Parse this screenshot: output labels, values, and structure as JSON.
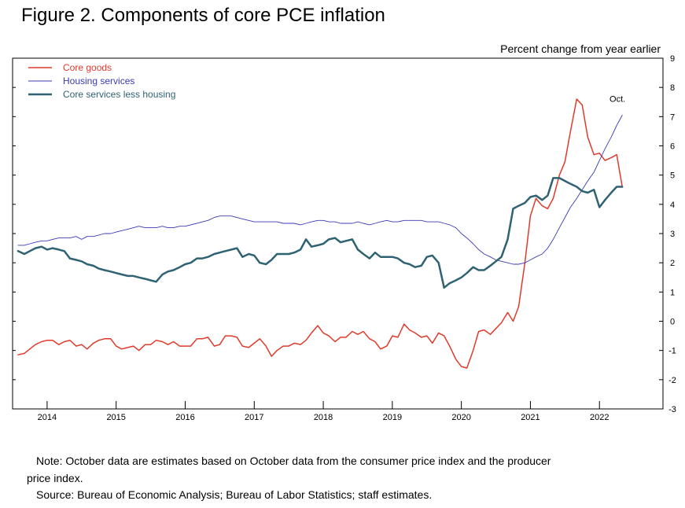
{
  "title": "Figure 2. Components of core PCE inflation",
  "note": "Note: October data are estimates based on October data from the consumer price index and the producer price index.",
  "note_line1": "Note: October data are estimates based on October data from the consumer price index and the producer",
  "note_line2": "price index.",
  "source": "Source: Bureau of Economic Analysis; Bureau of Labor Statistics; staff estimates.",
  "colors": {
    "core_goods": "#e03a2b",
    "housing": "#3a3ab8",
    "core_services": "#2f6272"
  },
  "chart_data": {
    "type": "line",
    "title": "Figure 2. Components of core PCE inflation",
    "ylabel": "Percent change from year earlier",
    "ylim": [
      -3,
      9
    ],
    "yticks": [
      "-3",
      "-2",
      "-1",
      "0",
      "1",
      "2",
      "3",
      "4",
      "5",
      "6",
      "7",
      "8",
      "9"
    ],
    "xlim": [
      2013.5,
      2022.92
    ],
    "xtick_labels": [
      "2014",
      "2015",
      "2016",
      "2017",
      "2018",
      "2019",
      "2020",
      "2021",
      "2022"
    ],
    "annotation": "Oct.",
    "legend": [
      "Core goods",
      "Housing services",
      "Core services less housing"
    ],
    "series": [
      {
        "name": "Core goods",
        "color": "#e03a2b",
        "width": 1.5,
        "x": [
          2013.58,
          2013.67,
          2013.75,
          2013.83,
          2013.92,
          2014.0,
          2014.08,
          2014.17,
          2014.25,
          2014.33,
          2014.42,
          2014.5,
          2014.58,
          2014.67,
          2014.75,
          2014.83,
          2014.92,
          2015.0,
          2015.08,
          2015.17,
          2015.25,
          2015.33,
          2015.42,
          2015.5,
          2015.58,
          2015.67,
          2015.75,
          2015.83,
          2015.92,
          2016.0,
          2016.08,
          2016.17,
          2016.25,
          2016.33,
          2016.42,
          2016.5,
          2016.58,
          2016.67,
          2016.75,
          2016.83,
          2016.92,
          2017.0,
          2017.08,
          2017.17,
          2017.25,
          2017.33,
          2017.42,
          2017.5,
          2017.58,
          2017.67,
          2017.75,
          2017.83,
          2017.92,
          2018.0,
          2018.08,
          2018.17,
          2018.25,
          2018.33,
          2018.42,
          2018.5,
          2018.58,
          2018.67,
          2018.75,
          2018.83,
          2018.92,
          2019.0,
          2019.08,
          2019.17,
          2019.25,
          2019.33,
          2019.42,
          2019.5,
          2019.58,
          2019.67,
          2019.75,
          2019.83,
          2019.92,
          2020.0,
          2020.08,
          2020.17,
          2020.25,
          2020.33,
          2020.42,
          2020.5,
          2020.58,
          2020.67,
          2020.75,
          2020.83,
          2020.92,
          2021.0,
          2021.08,
          2021.17,
          2021.25,
          2021.33,
          2021.42,
          2021.5,
          2021.58,
          2021.67,
          2021.75,
          2021.83,
          2021.92,
          2022.0,
          2022.08,
          2022.17,
          2022.25,
          2022.33
        ],
        "values": [
          -1.15,
          -1.1,
          -0.95,
          -0.8,
          -0.7,
          -0.65,
          -0.65,
          -0.8,
          -0.7,
          -0.65,
          -0.85,
          -0.8,
          -0.95,
          -0.75,
          -0.65,
          -0.6,
          -0.6,
          -0.85,
          -0.95,
          -0.9,
          -0.85,
          -1.0,
          -0.8,
          -0.8,
          -0.65,
          -0.7,
          -0.8,
          -0.7,
          -0.85,
          -0.85,
          -0.85,
          -0.6,
          -0.6,
          -0.55,
          -0.85,
          -0.8,
          -0.5,
          -0.5,
          -0.55,
          -0.85,
          -0.9,
          -0.75,
          -0.6,
          -0.85,
          -1.2,
          -1.0,
          -0.85,
          -0.85,
          -0.75,
          -0.8,
          -0.65,
          -0.4,
          -0.15,
          -0.4,
          -0.5,
          -0.7,
          -0.55,
          -0.55,
          -0.35,
          -0.45,
          -0.35,
          -0.6,
          -0.7,
          -0.95,
          -0.85,
          -0.5,
          -0.55,
          -0.1,
          -0.3,
          -0.4,
          -0.55,
          -0.5,
          -0.75,
          -0.4,
          -0.5,
          -0.85,
          -1.3,
          -1.55,
          -1.6,
          -1.0,
          -0.35,
          -0.3,
          -0.45,
          -0.25,
          -0.05,
          0.3,
          0.0,
          0.5,
          2.0,
          3.6,
          4.2,
          3.95,
          3.85,
          4.2,
          5.0,
          5.45,
          6.5,
          7.6,
          7.4,
          6.3,
          5.7,
          5.75,
          5.5,
          5.6,
          5.7,
          4.6
        ]
      },
      {
        "name": "Housing services",
        "color": "#3a3ab8",
        "width": 0.9,
        "x": [
          2013.58,
          2013.67,
          2013.75,
          2013.83,
          2013.92,
          2014.0,
          2014.08,
          2014.17,
          2014.25,
          2014.33,
          2014.42,
          2014.5,
          2014.58,
          2014.67,
          2014.75,
          2014.83,
          2014.92,
          2015.0,
          2015.08,
          2015.17,
          2015.25,
          2015.33,
          2015.42,
          2015.5,
          2015.58,
          2015.67,
          2015.75,
          2015.83,
          2015.92,
          2016.0,
          2016.08,
          2016.17,
          2016.25,
          2016.33,
          2016.42,
          2016.5,
          2016.58,
          2016.67,
          2016.75,
          2016.83,
          2016.92,
          2017.0,
          2017.08,
          2017.17,
          2017.25,
          2017.33,
          2017.42,
          2017.5,
          2017.58,
          2017.67,
          2017.75,
          2017.83,
          2017.92,
          2018.0,
          2018.08,
          2018.17,
          2018.25,
          2018.33,
          2018.42,
          2018.5,
          2018.58,
          2018.67,
          2018.75,
          2018.83,
          2018.92,
          2019.0,
          2019.08,
          2019.17,
          2019.25,
          2019.33,
          2019.42,
          2019.5,
          2019.58,
          2019.67,
          2019.75,
          2019.83,
          2019.92,
          2020.0,
          2020.08,
          2020.17,
          2020.25,
          2020.33,
          2020.42,
          2020.5,
          2020.58,
          2020.67,
          2020.75,
          2020.83,
          2020.92,
          2021.0,
          2021.08,
          2021.17,
          2021.25,
          2021.33,
          2021.42,
          2021.5,
          2021.58,
          2021.67,
          2021.75,
          2021.83,
          2021.92,
          2022.0,
          2022.08,
          2022.17,
          2022.25,
          2022.33
        ],
        "values": [
          2.6,
          2.6,
          2.65,
          2.7,
          2.75,
          2.75,
          2.8,
          2.85,
          2.85,
          2.85,
          2.9,
          2.8,
          2.9,
          2.9,
          2.95,
          3.0,
          3.0,
          3.05,
          3.1,
          3.15,
          3.2,
          3.25,
          3.2,
          3.2,
          3.2,
          3.25,
          3.2,
          3.2,
          3.25,
          3.25,
          3.3,
          3.35,
          3.4,
          3.45,
          3.55,
          3.6,
          3.6,
          3.6,
          3.55,
          3.5,
          3.45,
          3.4,
          3.4,
          3.4,
          3.4,
          3.4,
          3.35,
          3.35,
          3.35,
          3.3,
          3.35,
          3.4,
          3.45,
          3.45,
          3.4,
          3.4,
          3.35,
          3.35,
          3.35,
          3.4,
          3.35,
          3.3,
          3.35,
          3.4,
          3.45,
          3.4,
          3.4,
          3.45,
          3.45,
          3.45,
          3.45,
          3.4,
          3.4,
          3.4,
          3.35,
          3.3,
          3.2,
          3.0,
          2.85,
          2.65,
          2.45,
          2.3,
          2.2,
          2.1,
          2.05,
          2.0,
          1.95,
          1.95,
          2.0,
          2.1,
          2.2,
          2.3,
          2.5,
          2.8,
          3.2,
          3.55,
          3.9,
          4.2,
          4.5,
          4.8,
          5.1,
          5.5,
          5.9,
          6.3,
          6.7,
          7.05
        ]
      },
      {
        "name": "Core services less housing",
        "color": "#2f6272",
        "width": 2.5,
        "x": [
          2013.58,
          2013.67,
          2013.75,
          2013.83,
          2013.92,
          2014.0,
          2014.08,
          2014.17,
          2014.25,
          2014.33,
          2014.42,
          2014.5,
          2014.58,
          2014.67,
          2014.75,
          2014.83,
          2014.92,
          2015.0,
          2015.08,
          2015.17,
          2015.25,
          2015.33,
          2015.42,
          2015.5,
          2015.58,
          2015.67,
          2015.75,
          2015.83,
          2015.92,
          2016.0,
          2016.08,
          2016.17,
          2016.25,
          2016.33,
          2016.42,
          2016.5,
          2016.58,
          2016.67,
          2016.75,
          2016.83,
          2016.92,
          2017.0,
          2017.08,
          2017.17,
          2017.25,
          2017.33,
          2017.42,
          2017.5,
          2017.58,
          2017.67,
          2017.75,
          2017.83,
          2017.92,
          2018.0,
          2018.08,
          2018.17,
          2018.25,
          2018.33,
          2018.42,
          2018.5,
          2018.58,
          2018.67,
          2018.75,
          2018.83,
          2018.92,
          2019.0,
          2019.08,
          2019.17,
          2019.25,
          2019.33,
          2019.42,
          2019.5,
          2019.58,
          2019.67,
          2019.75,
          2019.83,
          2019.92,
          2020.0,
          2020.08,
          2020.17,
          2020.25,
          2020.33,
          2020.42,
          2020.5,
          2020.58,
          2020.67,
          2020.75,
          2020.83,
          2020.92,
          2021.0,
          2021.08,
          2021.17,
          2021.25,
          2021.33,
          2021.42,
          2021.5,
          2021.58,
          2021.67,
          2021.75,
          2021.83,
          2021.92,
          2022.0,
          2022.08,
          2022.17,
          2022.25,
          2022.33
        ],
        "values": [
          2.4,
          2.3,
          2.4,
          2.5,
          2.55,
          2.45,
          2.5,
          2.45,
          2.4,
          2.15,
          2.1,
          2.05,
          1.95,
          1.9,
          1.8,
          1.75,
          1.7,
          1.65,
          1.6,
          1.55,
          1.55,
          1.5,
          1.45,
          1.4,
          1.35,
          1.6,
          1.7,
          1.75,
          1.85,
          1.95,
          2.0,
          2.15,
          2.15,
          2.2,
          2.3,
          2.35,
          2.4,
          2.45,
          2.5,
          2.2,
          2.3,
          2.25,
          2.0,
          1.95,
          2.1,
          2.3,
          2.3,
          2.3,
          2.35,
          2.45,
          2.8,
          2.55,
          2.6,
          2.65,
          2.8,
          2.85,
          2.7,
          2.75,
          2.8,
          2.45,
          2.3,
          2.15,
          2.35,
          2.2,
          2.2,
          2.2,
          2.15,
          2.0,
          1.95,
          1.85,
          1.9,
          2.2,
          2.25,
          2.0,
          1.15,
          1.3,
          1.4,
          1.5,
          1.65,
          1.85,
          1.75,
          1.75,
          1.9,
          2.05,
          2.2,
          2.8,
          3.85,
          3.95,
          4.05,
          4.25,
          4.3,
          4.15,
          4.3,
          4.9,
          4.9,
          4.8,
          4.7,
          4.6,
          4.45,
          4.4,
          4.5,
          3.9,
          4.15,
          4.4,
          4.6,
          4.6
        ]
      }
    ]
  }
}
